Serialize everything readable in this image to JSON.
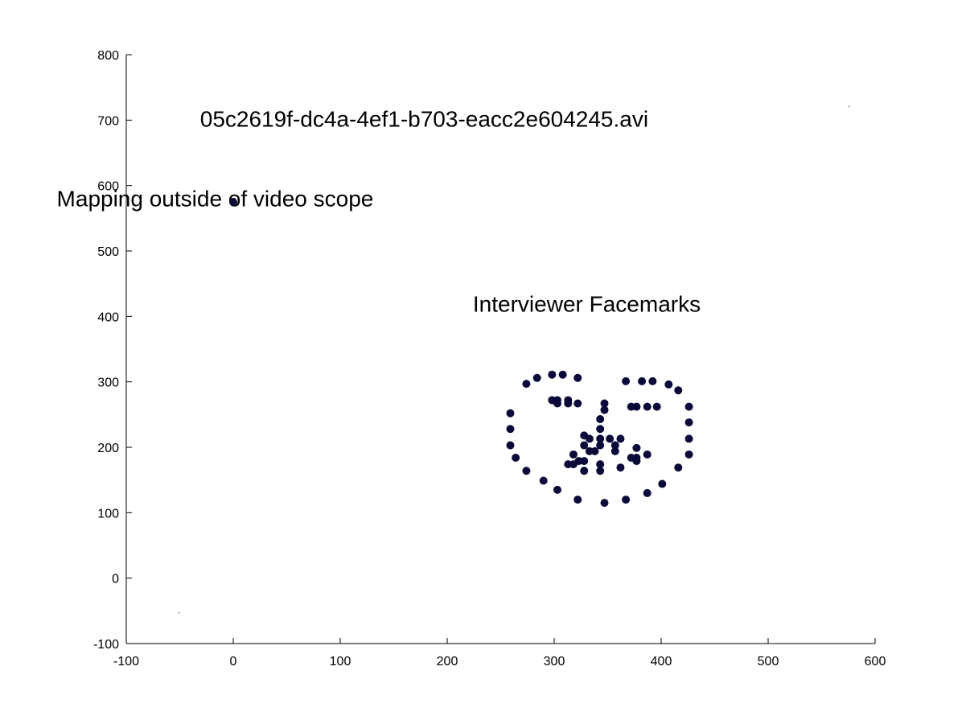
{
  "chart_data": {
    "type": "scatter",
    "xlim": [
      -100,
      600
    ],
    "ylim": [
      -100,
      800
    ],
    "xticks": [
      -100,
      0,
      100,
      200,
      300,
      400,
      500,
      600
    ],
    "yticks": [
      -100,
      0,
      100,
      200,
      300,
      400,
      500,
      600,
      700,
      800
    ],
    "grid": false,
    "marker_color": "#0a0a3a",
    "annotations": [
      {
        "text": "05c2619f-dc4a-4ef1-b703-eacc2e604245.avi",
        "x": -31,
        "y": 690
      },
      {
        "text": "Mapping outside of video scope",
        "x": -165,
        "y": 568
      },
      {
        "text": "Interviewer Facemarks",
        "x": 224,
        "y": 407
      }
    ],
    "series": [
      {
        "points": [
          [
            0,
            575
          ],
          [
            259,
            252
          ],
          [
            259,
            228
          ],
          [
            259,
            203
          ],
          [
            264,
            184
          ],
          [
            274,
            164
          ],
          [
            290,
            149
          ],
          [
            303,
            135
          ],
          [
            322,
            120
          ],
          [
            347,
            115
          ],
          [
            367,
            120
          ],
          [
            387,
            130
          ],
          [
            401,
            144
          ],
          [
            416,
            169
          ],
          [
            426,
            189
          ],
          [
            426,
            213
          ],
          [
            426,
            238
          ],
          [
            426,
            262
          ],
          [
            274,
            297
          ],
          [
            284,
            306
          ],
          [
            298,
            311
          ],
          [
            308,
            311
          ],
          [
            322,
            306
          ],
          [
            367,
            301
          ],
          [
            382,
            301
          ],
          [
            392,
            301
          ],
          [
            407,
            296
          ],
          [
            416,
            287
          ],
          [
            347,
            267
          ],
          [
            347,
            257
          ],
          [
            343,
            243
          ],
          [
            343,
            228
          ],
          [
            343,
            213
          ],
          [
            343,
            203
          ],
          [
            298,
            272
          ],
          [
            303,
            272
          ],
          [
            313,
            272
          ],
          [
            303,
            267
          ],
          [
            313,
            267
          ],
          [
            322,
            267
          ],
          [
            372,
            262
          ],
          [
            377,
            262
          ],
          [
            387,
            262
          ],
          [
            396,
            262
          ],
          [
            328,
            218
          ],
          [
            333,
            213
          ],
          [
            352,
            213
          ],
          [
            362,
            213
          ],
          [
            357,
            203
          ],
          [
            328,
            203
          ],
          [
            333,
            194
          ],
          [
            338,
            194
          ],
          [
            357,
            194
          ],
          [
            377,
            199
          ],
          [
            318,
            189
          ],
          [
            372,
            184
          ],
          [
            377,
            184
          ],
          [
            387,
            189
          ],
          [
            377,
            179
          ],
          [
            313,
            174
          ],
          [
            318,
            174
          ],
          [
            323,
            179
          ],
          [
            328,
            179
          ],
          [
            343,
            174
          ],
          [
            362,
            169
          ],
          [
            328,
            164
          ],
          [
            343,
            164
          ]
        ]
      }
    ]
  }
}
